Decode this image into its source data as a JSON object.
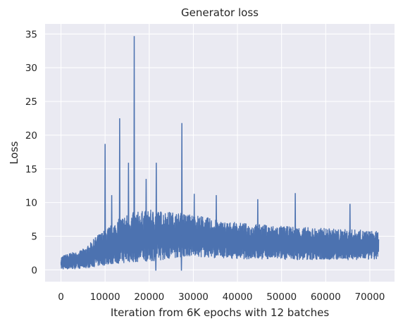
{
  "chart_data": {
    "type": "line",
    "title": "Generator loss",
    "xlabel": "Iteration from 6K epochs with 12 batches",
    "ylabel": "Loss",
    "xlim": [
      -3600,
      75600
    ],
    "ylim": [
      -1.74,
      36.5
    ],
    "xticks": [
      0,
      10000,
      20000,
      30000,
      40000,
      50000,
      60000,
      70000
    ],
    "yticks": [
      0,
      5,
      10,
      15,
      20,
      25,
      30,
      35
    ],
    "grid": true,
    "legend": "none",
    "colors": {
      "background": "#eaeaf2",
      "grid": "#ffffff",
      "line": "#4c72b0"
    },
    "series": [
      {
        "envelope_x": [
          0,
          2000,
          4000,
          6000,
          8000,
          10000,
          12000,
          14000,
          16000,
          18000,
          20000,
          22000,
          24000,
          26000,
          28000,
          30000,
          32000,
          34000,
          36000,
          38000,
          40000,
          42000,
          44000,
          46000,
          48000,
          50000,
          52000,
          54000,
          56000,
          58000,
          60000,
          62000,
          64000,
          66000,
          68000,
          70000,
          72000
        ],
        "envelope_low": [
          0.1,
          0.1,
          0.2,
          0.3,
          0.5,
          0.7,
          0.9,
          1.0,
          1.1,
          1.2,
          1.3,
          1.4,
          1.6,
          1.8,
          2.0,
          2.0,
          1.9,
          1.8,
          1.8,
          1.7,
          1.7,
          1.6,
          1.6,
          1.6,
          1.6,
          1.6,
          1.5,
          1.5,
          1.5,
          1.5,
          1.5,
          1.5,
          1.5,
          1.5,
          1.5,
          1.5,
          1.5
        ],
        "envelope_high": [
          2.0,
          2.5,
          2.7,
          3.5,
          5.0,
          6.0,
          7.0,
          8.0,
          8.5,
          8.7,
          8.9,
          8.8,
          8.7,
          8.5,
          8.4,
          8.2,
          8.0,
          7.6,
          7.3,
          7.1,
          7.0,
          6.9,
          6.8,
          6.7,
          6.6,
          6.5,
          6.4,
          6.4,
          6.3,
          6.2,
          6.2,
          6.1,
          6.0,
          6.0,
          5.9,
          5.8,
          5.7
        ],
        "spike_x": [
          10000,
          11500,
          13300,
          15300,
          16600,
          19300,
          21600,
          27400,
          30200,
          35200,
          44600,
          53100,
          65500
        ],
        "spike_y": [
          18.7,
          11.1,
          22.5,
          15.9,
          34.7,
          13.5,
          15.9,
          21.8,
          11.3,
          11.1,
          10.5,
          11.4,
          9.8
        ],
        "dip_x": [
          21500,
          27300
        ],
        "dip_y": [
          -0.1,
          -0.1
        ]
      }
    ]
  }
}
